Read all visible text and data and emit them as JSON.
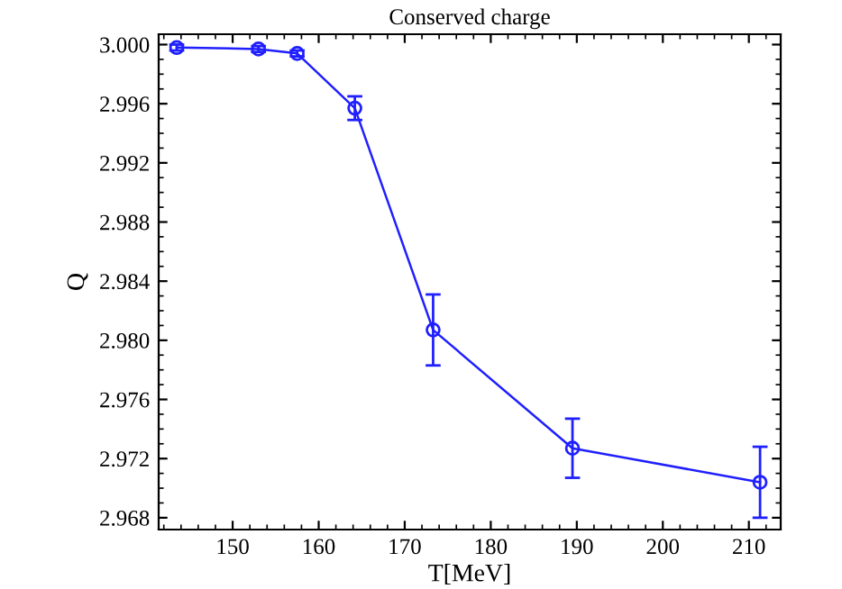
{
  "chart_data": {
    "type": "line",
    "title": "Conserved charge",
    "xlabel": "T[MeV]",
    "ylabel": "Q",
    "x": [
      143.5,
      153,
      157.5,
      164.2,
      173.3,
      189.5,
      211.3
    ],
    "series": [
      {
        "color": "#1f1fff",
        "values": [
          2.9998,
          2.9997,
          2.9994,
          2.9957,
          2.9807,
          2.9727,
          2.9704
        ],
        "errors": [
          0.0002,
          0.0002,
          0.0002,
          0.0008,
          0.0024,
          0.002,
          0.0024
        ]
      }
    ],
    "marker": "circle",
    "line_style": "solid",
    "grid": false,
    "legend": false,
    "xlim": [
      141.4,
      213.7
    ],
    "ylim": [
      2.9672,
      3.0007
    ],
    "xticks": [
      150,
      160,
      170,
      180,
      190,
      200,
      210
    ],
    "yticks": [
      {
        "value": 2.968,
        "label": "2.968"
      },
      {
        "value": 2.972,
        "label": "2.972"
      },
      {
        "value": 2.976,
        "label": "2.976"
      },
      {
        "value": 2.98,
        "label": "2.980"
      },
      {
        "value": 2.984,
        "label": "2.984"
      },
      {
        "value": 2.988,
        "label": "2.988"
      },
      {
        "value": 2.992,
        "label": "2.992"
      },
      {
        "value": 2.996,
        "label": "2.996"
      },
      {
        "value": 3.0,
        "label": "3.000"
      }
    ]
  }
}
